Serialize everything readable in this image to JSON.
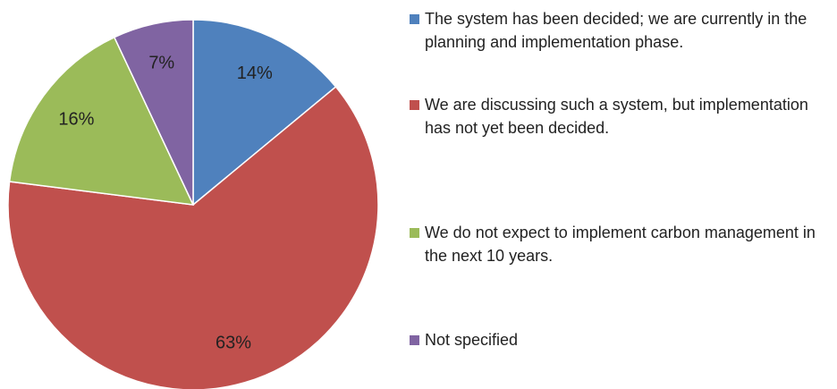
{
  "chart_data": {
    "type": "pie",
    "categories": [
      "The system has been decided; we are currently in the planning and implementation phase.",
      "We are discussing such a system, but implementation has not yet been decided.",
      "We do not expect to implement carbon management in the next 10 years.",
      "Not specified"
    ],
    "values": [
      14,
      63,
      16,
      7
    ],
    "value_labels": [
      "14%",
      "63%",
      "16%",
      "7%"
    ],
    "colors": [
      "#4f81bd",
      "#c0504d",
      "#9bbb59",
      "#8064a2"
    ],
    "legend": "right"
  }
}
